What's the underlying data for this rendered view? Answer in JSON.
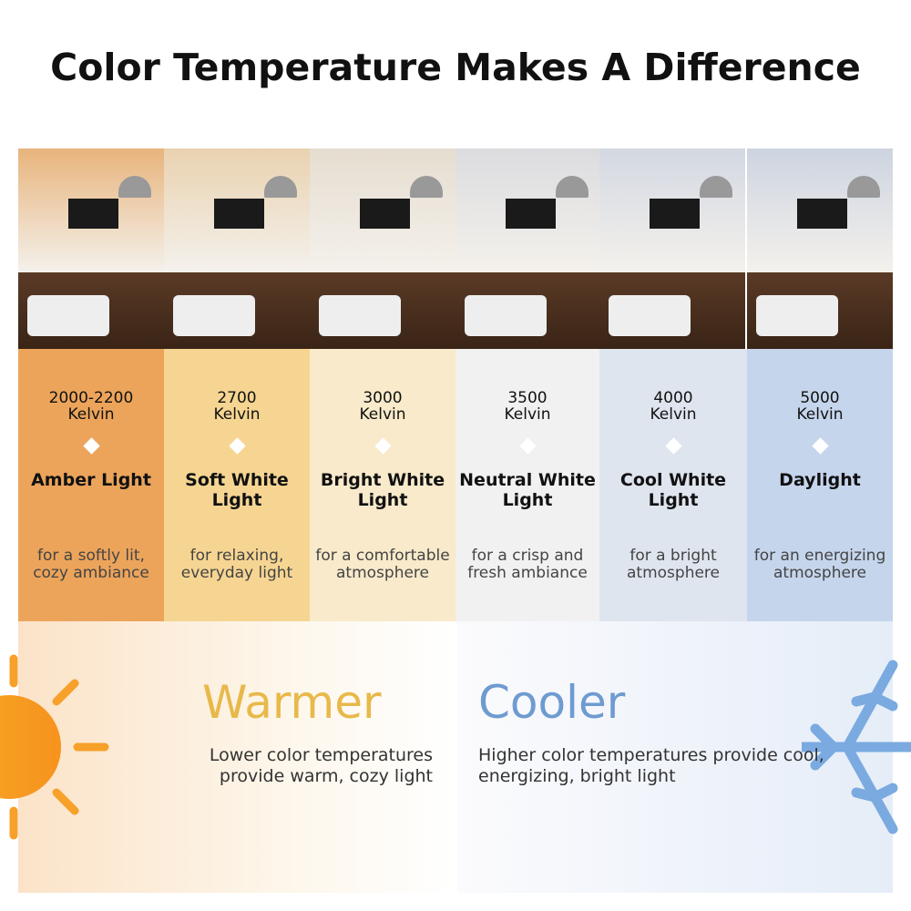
{
  "title": "Color Temperature Makes A Difference",
  "columns": [
    {
      "kelvin": "2000-2200",
      "unit": "Kelvin",
      "name": "Amber Light",
      "desc": "for a softly lit, cozy ambiance",
      "color": "#eca45b",
      "tint": "#e8b47c"
    },
    {
      "kelvin": "2700",
      "unit": "Kelvin",
      "name": "Soft White Light",
      "desc": "for relaxing, everyday light",
      "color": "#f6d592",
      "tint": "#e9d2b0"
    },
    {
      "kelvin": "3000",
      "unit": "Kelvin",
      "name": "Bright White Light",
      "desc": "for a comfortable atmosphere",
      "color": "#f8eaca",
      "tint": "#e6ddd0"
    },
    {
      "kelvin": "3500",
      "unit": "Kelvin",
      "name": "Neutral White Light",
      "desc": "for a crisp and fresh ambiance",
      "color": "#f1f1f1",
      "tint": "#dcdcdf"
    },
    {
      "kelvin": "4000",
      "unit": "Kelvin",
      "name": "Cool White Light",
      "desc": "for a bright atmosphere",
      "color": "#dfe5ef",
      "tint": "#d3d8e2"
    },
    {
      "kelvin": "5000",
      "unit": "Kelvin",
      "name": "Daylight",
      "desc": "for an energizing atmosphere",
      "color": "#c5d5ec",
      "tint": "#cdd4e0"
    }
  ],
  "warmer": {
    "label": "Warmer",
    "text": "Lower color temperatures provide warm, cozy light",
    "color": "#e8b94a",
    "icon": "sun-icon"
  },
  "cooler": {
    "label": "Cooler",
    "text": "Higher color temperatures provide cool, energizing, bright light",
    "color": "#6e9bd0",
    "icon": "snowflake-icon"
  }
}
